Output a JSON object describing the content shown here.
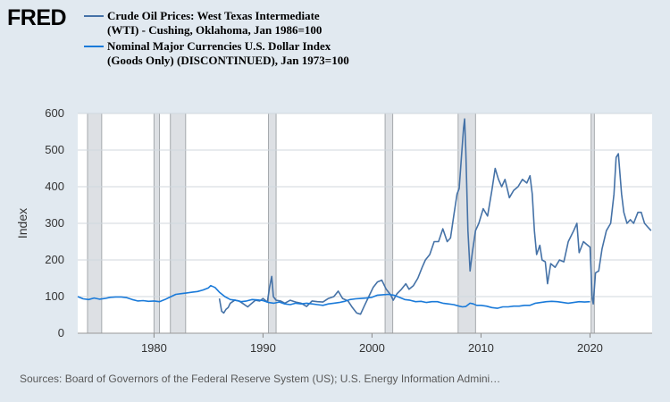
{
  "logo": {
    "text": "FRED"
  },
  "colors": {
    "background": "#e1e9f0",
    "plot_bg": "#ffffff",
    "grid": "#d0d7de",
    "recession": "#dde0e4",
    "recession_edge": "#a5a9ad",
    "wti": "#4572a7",
    "dollar": "#1a7ad9",
    "text": "#333333"
  },
  "chart_data": {
    "type": "line",
    "title": "",
    "xlabel": "",
    "ylabel": "Index",
    "xlim": [
      1973.0,
      2025.7
    ],
    "ylim": [
      0,
      600
    ],
    "yticks": [
      0,
      100,
      200,
      300,
      400,
      500,
      600
    ],
    "ytick_labels": [
      "0",
      "100",
      "200",
      "300",
      "400",
      "500",
      "600"
    ],
    "xticks": [
      1980,
      1990,
      2000,
      2010,
      2020
    ],
    "xtick_labels": [
      "1980",
      "1990",
      "2000",
      "2010",
      "2020"
    ],
    "recessions": [
      [
        1973.9,
        1975.2
      ],
      [
        1980.0,
        1980.5
      ],
      [
        1981.5,
        1982.9
      ],
      [
        1990.5,
        1991.2
      ],
      [
        2001.2,
        2001.9
      ],
      [
        2007.9,
        2009.5
      ],
      [
        2020.1,
        2020.4
      ]
    ],
    "series": [
      {
        "name": "Crude Oil Prices: West Texas Intermediate (WTI) - Cushing, Oklahoma, Jan 1986=100",
        "x": [
          1986.0,
          1986.2,
          1986.4,
          1986.6,
          1986.8,
          1987.0,
          1987.4,
          1987.8,
          1988.2,
          1988.6,
          1988.9,
          1989.3,
          1989.7,
          1990.0,
          1990.4,
          1990.6,
          1990.8,
          1990.95,
          1991.2,
          1991.6,
          1992.0,
          1992.5,
          1993.0,
          1993.5,
          1994.0,
          1994.5,
          1995.0,
          1995.5,
          1996.0,
          1996.5,
          1996.9,
          1997.3,
          1997.8,
          1998.2,
          1998.6,
          1998.95,
          1999.3,
          1999.7,
          2000.1,
          2000.5,
          2000.9,
          2001.3,
          2001.7,
          2001.95,
          2002.3,
          2002.7,
          2003.1,
          2003.4,
          2003.8,
          2004.2,
          2004.6,
          2004.9,
          2005.3,
          2005.7,
          2006.1,
          2006.5,
          2006.9,
          2007.2,
          2007.5,
          2007.8,
          2008.0,
          2008.2,
          2008.4,
          2008.5,
          2008.6,
          2008.8,
          2009.0,
          2009.2,
          2009.5,
          2009.8,
          2010.2,
          2010.6,
          2011.0,
          2011.3,
          2011.6,
          2011.9,
          2012.2,
          2012.6,
          2013.0,
          2013.4,
          2013.8,
          2014.2,
          2014.5,
          2014.7,
          2014.9,
          2015.1,
          2015.4,
          2015.6,
          2015.9,
          2016.1,
          2016.4,
          2016.8,
          2017.2,
          2017.6,
          2018.0,
          2018.5,
          2018.8,
          2019.0,
          2019.4,
          2019.8,
          2020.0,
          2020.2,
          2020.3,
          2020.5,
          2020.8,
          2021.1,
          2021.5,
          2021.9,
          2022.2,
          2022.4,
          2022.6,
          2022.9,
          2023.1,
          2023.4,
          2023.7,
          2024.0,
          2024.4,
          2024.7,
          2025.0,
          2025.3,
          2025.6
        ],
        "values": [
          95,
          60,
          55,
          65,
          70,
          82,
          90,
          88,
          80,
          72,
          80,
          90,
          88,
          95,
          85,
          125,
          155,
          100,
          90,
          88,
          82,
          90,
          85,
          82,
          73,
          88,
          86,
          85,
          95,
          100,
          115,
          95,
          88,
          70,
          55,
          52,
          75,
          100,
          125,
          140,
          145,
          120,
          105,
          90,
          108,
          120,
          135,
          120,
          130,
          150,
          180,
          200,
          215,
          250,
          250,
          285,
          250,
          260,
          320,
          380,
          395,
          480,
          560,
          585,
          500,
          280,
          170,
          220,
          280,
          300,
          340,
          320,
          390,
          450,
          420,
          400,
          420,
          370,
          390,
          400,
          420,
          410,
          430,
          380,
          280,
          215,
          240,
          200,
          195,
          135,
          190,
          180,
          200,
          195,
          250,
          280,
          300,
          220,
          250,
          240,
          235,
          95,
          80,
          165,
          170,
          230,
          280,
          300,
          380,
          480,
          490,
          380,
          330,
          300,
          310,
          300,
          330,
          330,
          300,
          290,
          280
        ]
      },
      {
        "name": "Nominal Major Currencies U.S. Dollar Index (Goods Only) (DISCONTINUED), Jan 1973=100",
        "x": [
          1973.0,
          1973.5,
          1974.0,
          1974.5,
          1975.0,
          1975.5,
          1976.0,
          1976.5,
          1977.0,
          1977.5,
          1978.0,
          1978.5,
          1979.0,
          1979.5,
          1980.0,
          1980.5,
          1981.0,
          1981.5,
          1982.0,
          1982.5,
          1983.0,
          1983.5,
          1984.0,
          1984.5,
          1985.0,
          1985.2,
          1985.6,
          1986.0,
          1986.5,
          1987.0,
          1987.5,
          1988.0,
          1988.5,
          1989.0,
          1989.5,
          1990.0,
          1990.5,
          1991.0,
          1991.5,
          1992.0,
          1992.5,
          1993.0,
          1993.5,
          1994.0,
          1994.5,
          1995.0,
          1995.5,
          1996.0,
          1996.5,
          1997.0,
          1997.5,
          1998.0,
          1998.5,
          1999.0,
          1999.5,
          2000.0,
          2000.5,
          2001.0,
          2001.5,
          2002.0,
          2002.5,
          2003.0,
          2003.5,
          2004.0,
          2004.5,
          2005.0,
          2005.5,
          2006.0,
          2006.5,
          2007.0,
          2007.5,
          2008.0,
          2008.3,
          2008.6,
          2009.0,
          2009.3,
          2009.6,
          2010.0,
          2010.5,
          2011.0,
          2011.5,
          2012.0,
          2012.5,
          2013.0,
          2013.5,
          2014.0,
          2014.5,
          2015.0,
          2015.5,
          2016.0,
          2016.5,
          2017.0,
          2017.5,
          2018.0,
          2018.5,
          2019.0,
          2019.5,
          2020.0
        ],
        "values": [
          100,
          94,
          92,
          96,
          93,
          95,
          98,
          99,
          99,
          97,
          92,
          88,
          89,
          87,
          88,
          86,
          92,
          99,
          106,
          108,
          110,
          112,
          114,
          118,
          124,
          130,
          125,
          112,
          100,
          92,
          90,
          86,
          88,
          92,
          91,
          89,
          84,
          82,
          85,
          80,
          78,
          82,
          80,
          82,
          80,
          78,
          76,
          80,
          82,
          84,
          87,
          92,
          94,
          95,
          96,
          98,
          104,
          105,
          106,
          104,
          98,
          92,
          90,
          86,
          87,
          84,
          86,
          86,
          82,
          80,
          78,
          74,
          72,
          73,
          82,
          80,
          76,
          76,
          74,
          70,
          68,
          72,
          72,
          74,
          74,
          76,
          76,
          82,
          84,
          86,
          87,
          86,
          84,
          82,
          84,
          86,
          85,
          86
        ]
      }
    ]
  },
  "legend": {
    "series1": "Crude Oil Prices: West Texas Intermediate (WTI) - Cushing, Oklahoma, Jan 1986=100",
    "series2": "Nominal Major Currencies U.S. Dollar Index (Goods Only) (DISCONTINUED), Jan 1973=100"
  },
  "footer": {
    "source": "Sources: Board of Governors of the Federal Reserve System (US); U.S. Energy Information Admini…"
  }
}
